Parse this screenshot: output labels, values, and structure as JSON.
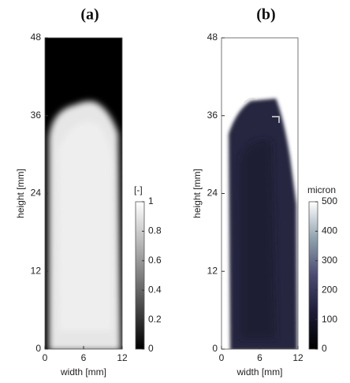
{
  "chart_data": [
    {
      "type": "heatmap",
      "title": "(a)",
      "xlabel": "width [mm]",
      "ylabel": "height [mm]",
      "xlim": [
        0,
        12
      ],
      "xticks": [
        0,
        6,
        12
      ],
      "ylim": [
        0,
        48
      ],
      "yticks": [
        0,
        12,
        24,
        36,
        48
      ],
      "colorbar_label": "[-]",
      "clim": [
        0,
        1
      ],
      "cticks": [
        0,
        0.2,
        0.4,
        0.6,
        0.8,
        1
      ],
      "colormap": [
        "#000000",
        "#ffffff"
      ]
    },
    {
      "type": "heatmap",
      "title": "(b)",
      "xlabel": "width [mm]",
      "ylabel": "height [mm]",
      "xlim": [
        0,
        12
      ],
      "xticks": [
        0,
        6,
        12
      ],
      "ylim": [
        0,
        48
      ],
      "yticks": [
        0,
        12,
        24,
        36,
        48
      ],
      "colorbar_label": "micron",
      "clim": [
        0,
        500
      ],
      "cticks": [
        0,
        100,
        200,
        300,
        400,
        500
      ],
      "colormap": [
        "#000000",
        "#1c1c38",
        "#4a4a72",
        "#8ea2ae",
        "#ffffff"
      ]
    }
  ]
}
